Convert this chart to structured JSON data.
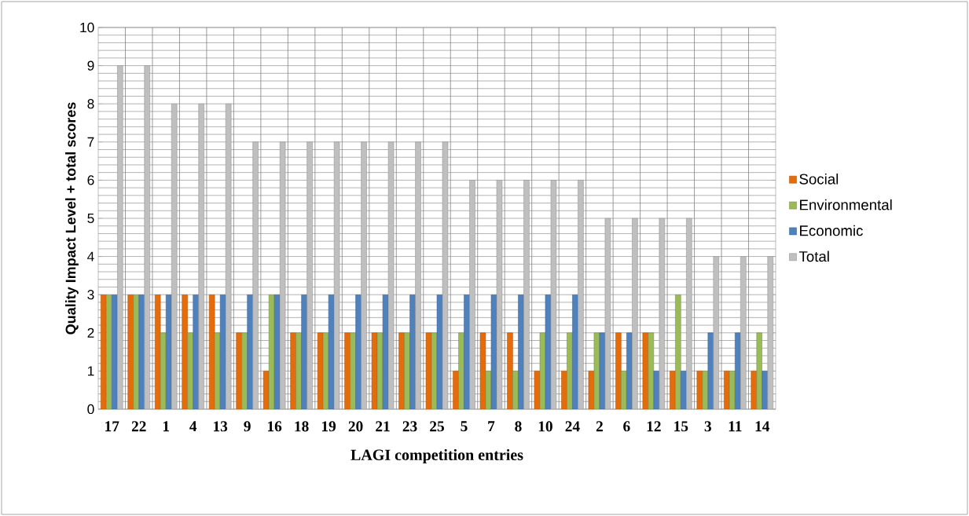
{
  "chart_data": {
    "type": "bar",
    "xlabel": "LAGI competition entries",
    "ylabel": "Quality Impact Level + total scores",
    "categories": [
      "17",
      "22",
      "1",
      "4",
      "13",
      "9",
      "16",
      "18",
      "19",
      "20",
      "21",
      "23",
      "25",
      "5",
      "7",
      "8",
      "10",
      "24",
      "2",
      "6",
      "12",
      "15",
      "3",
      "11",
      "14"
    ],
    "series": [
      {
        "name": "Social",
        "color": "#e46c0a",
        "values": [
          3,
          3,
          3,
          3,
          3,
          2,
          1,
          2,
          2,
          2,
          2,
          2,
          2,
          1,
          2,
          2,
          1,
          1,
          1,
          2,
          2,
          1,
          1,
          1,
          1
        ]
      },
      {
        "name": "Environmental",
        "color": "#9bbb59",
        "values": [
          3,
          3,
          2,
          2,
          2,
          2,
          3,
          2,
          2,
          2,
          2,
          2,
          2,
          2,
          1,
          1,
          2,
          2,
          2,
          1,
          2,
          3,
          1,
          1,
          2
        ]
      },
      {
        "name": "Economic",
        "color": "#4f81bd",
        "values": [
          3,
          3,
          3,
          3,
          3,
          3,
          3,
          3,
          3,
          3,
          3,
          3,
          3,
          3,
          3,
          3,
          3,
          3,
          2,
          2,
          1,
          1,
          2,
          2,
          1
        ]
      },
      {
        "name": "Total",
        "color": "#bfbfbf",
        "values": [
          9,
          9,
          8,
          8,
          8,
          7,
          7,
          7,
          7,
          7,
          7,
          7,
          7,
          6,
          6,
          6,
          6,
          6,
          5,
          5,
          5,
          5,
          4,
          4,
          4
        ]
      }
    ],
    "ylim": [
      0,
      10
    ],
    "yticks": [
      0,
      1,
      2,
      3,
      4,
      5,
      6,
      7,
      8,
      9,
      10
    ],
    "grid": true,
    "legend": "right"
  }
}
